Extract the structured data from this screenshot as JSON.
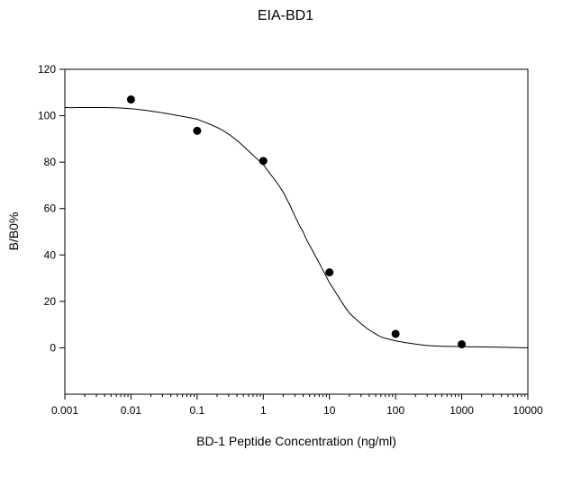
{
  "chart_data": {
    "type": "scatter",
    "title": "EIA-BD1",
    "xlabel": "BD-1 Peptide Concentration (ng/ml)",
    "ylabel": "B/B0%",
    "xscale": "log",
    "xlim": [
      0.001,
      10000
    ],
    "ylim": [
      -20,
      120
    ],
    "grid": false,
    "legend": "none",
    "x_ticks": [
      "0.001",
      "0.01",
      "0.1",
      "1",
      "10",
      "100",
      "1000",
      "10000"
    ],
    "x_tick_values": [
      0.001,
      0.01,
      0.1,
      1,
      10,
      100,
      1000,
      10000
    ],
    "y_ticks": [
      "0",
      "20",
      "40",
      "60",
      "80",
      "100",
      "120"
    ],
    "y_tick_values": [
      0,
      20,
      40,
      60,
      80,
      100,
      120
    ],
    "series": [
      {
        "type": "scatter",
        "x": [
          0.01,
          0.1,
          1,
          10,
          100,
          1000
        ],
        "y": [
          107,
          93.5,
          80.5,
          32.5,
          6,
          1.5
        ]
      },
      {
        "type": "line",
        "x": [
          0.001,
          0.01,
          0.1,
          0.3,
          1,
          2,
          4,
          6,
          10,
          20,
          50,
          100,
          300,
          1000,
          3000,
          10000
        ],
        "y": [
          103.5,
          103,
          98.5,
          92,
          79,
          67,
          50,
          40,
          28,
          15,
          6,
          3,
          1,
          0.5,
          0.3,
          0
        ]
      }
    ]
  }
}
